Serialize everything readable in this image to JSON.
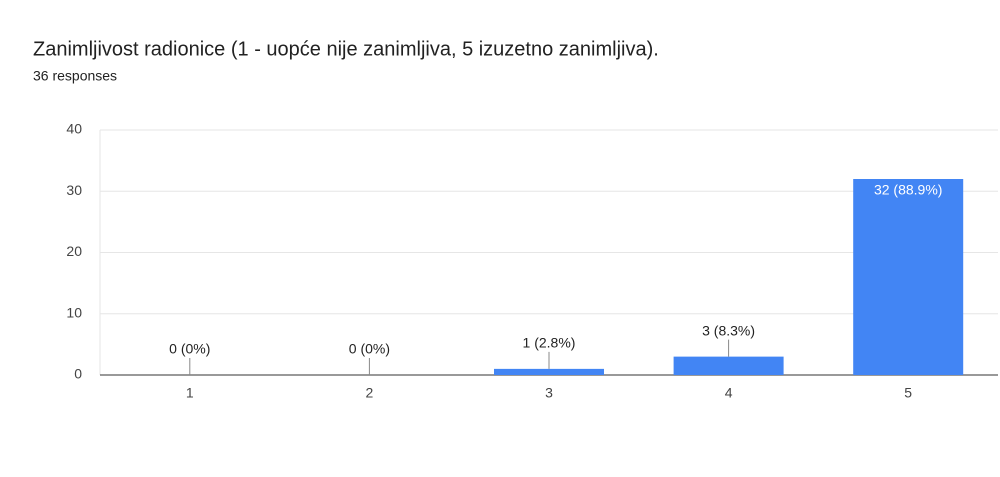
{
  "chart_data": {
    "type": "bar",
    "title": "Zanimljivost radionice (1 - uopće nije zanimljiva, 5 izuzetno zanimljiva).",
    "subtitle": "36 responses",
    "categories": [
      "1",
      "2",
      "3",
      "4",
      "5"
    ],
    "values": [
      0,
      0,
      1,
      3,
      32
    ],
    "value_labels": [
      "0 (0%)",
      "0 (0%)",
      "1 (2.8%)",
      "3 (8.3%)",
      "32 (88.9%)"
    ],
    "color": "#4285f4",
    "ylim": [
      0,
      40
    ],
    "yticks": [
      0,
      10,
      20,
      30,
      40
    ],
    "grid": true
  }
}
